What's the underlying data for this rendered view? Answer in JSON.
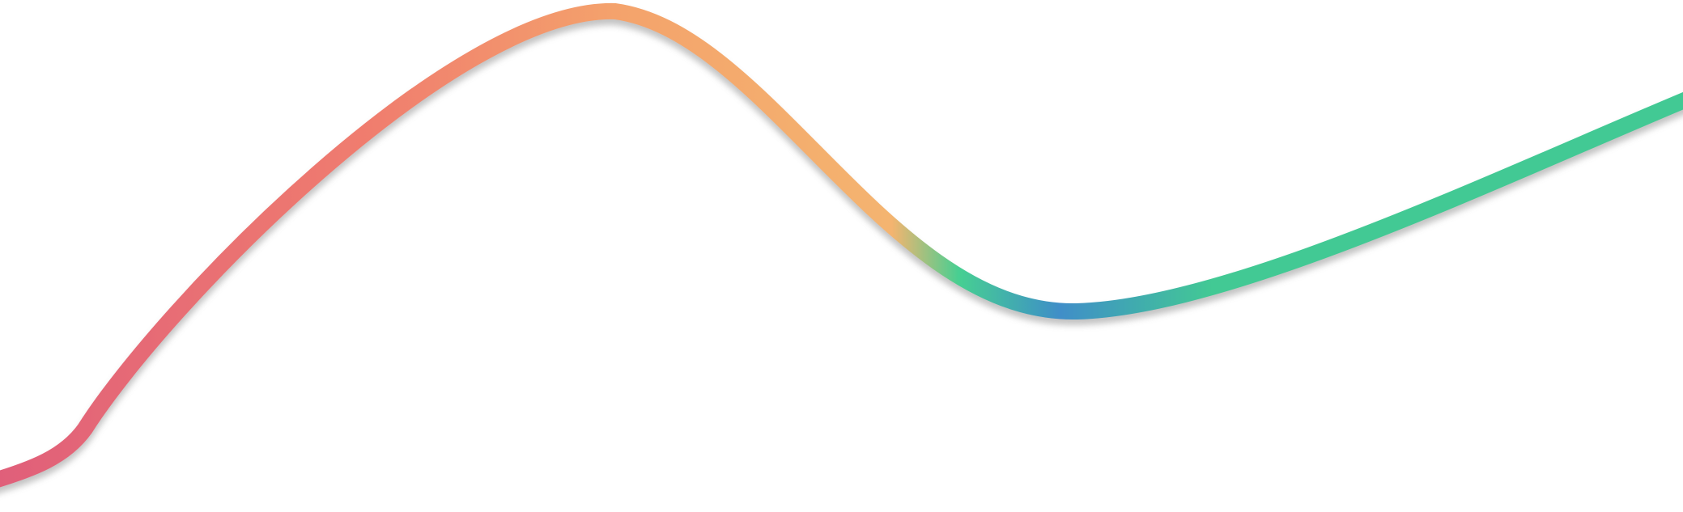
{
  "scene": {
    "background": "#ffffff",
    "stroke_gradient": [
      {
        "color": "#e05f7a"
      },
      {
        "color": "#f07d6e"
      },
      {
        "color": "#f4a36c"
      },
      {
        "color": "#f4b46f"
      },
      {
        "color": "#46cf92"
      },
      {
        "color": "#3f8ec8"
      },
      {
        "color": "#43c994"
      },
      {
        "color": "#43c994"
      }
    ],
    "shadow_color": "#7a7a7a"
  }
}
